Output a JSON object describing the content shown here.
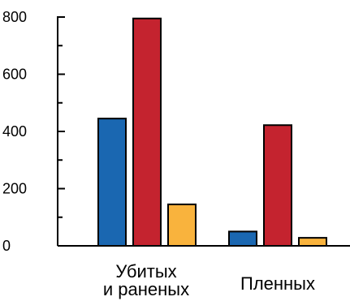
{
  "chart_data": {
    "type": "bar",
    "title": "",
    "xlabel": "",
    "ylabel": "",
    "ylim": [
      0,
      800
    ],
    "y_ticks": [
      {
        "value": 0,
        "label": "0"
      },
      {
        "value": 200,
        "label": "200"
      },
      {
        "value": 400,
        "label": "400"
      },
      {
        "value": 600,
        "label": "600"
      },
      {
        "value": 800,
        "label": "800"
      }
    ],
    "y_minor_ticks": [
      100,
      300,
      500,
      700
    ],
    "categories": [
      {
        "lines": [
          "Убитых",
          "и раненых"
        ]
      },
      {
        "lines": [
          "Пленных"
        ]
      }
    ],
    "series": [
      {
        "color": "#1a67b1",
        "values": [
          445,
          50
        ]
      },
      {
        "color": "#c4232f",
        "values": [
          795,
          422
        ]
      },
      {
        "color": "#f9b33d",
        "values": [
          145,
          28
        ]
      }
    ],
    "grid": false,
    "legend": "none"
  }
}
